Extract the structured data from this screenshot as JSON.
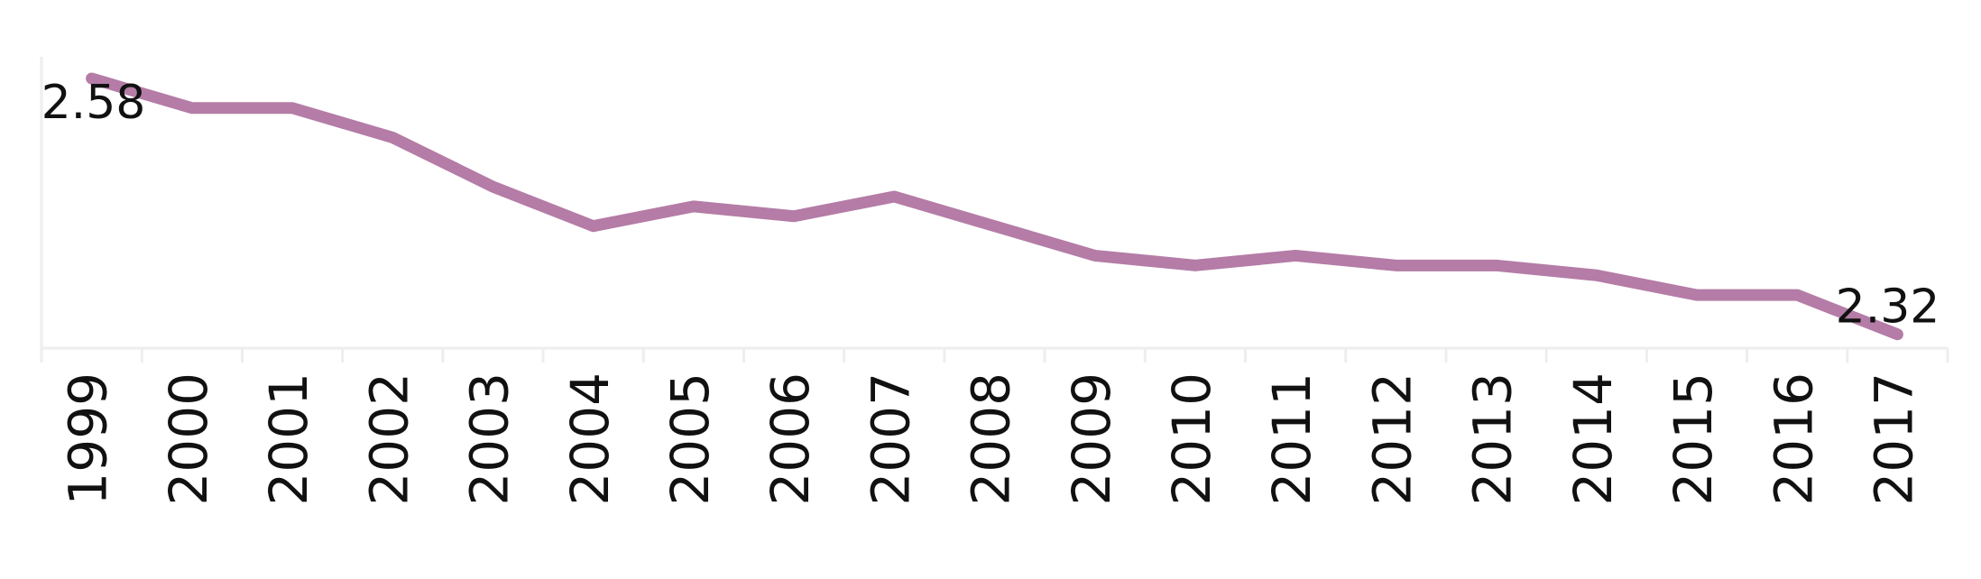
{
  "chart_data": {
    "type": "line",
    "categories": [
      "1999",
      "2000",
      "2001",
      "2002",
      "2003",
      "2004",
      "2005",
      "2006",
      "2007",
      "2008",
      "2009",
      "2010",
      "2011",
      "2012",
      "2013",
      "2014",
      "2015",
      "2016",
      "2017"
    ],
    "series": [
      {
        "color": "#b47ca6",
        "values": [
          2.58,
          2.55,
          2.55,
          2.52,
          2.47,
          2.43,
          2.45,
          2.44,
          2.46,
          2.43,
          2.4,
          2.39,
          2.4,
          2.39,
          2.39,
          2.38,
          2.36,
          2.36,
          2.32
        ]
      }
    ],
    "ylim": [
      2.306,
      2.602
    ]
  }
}
